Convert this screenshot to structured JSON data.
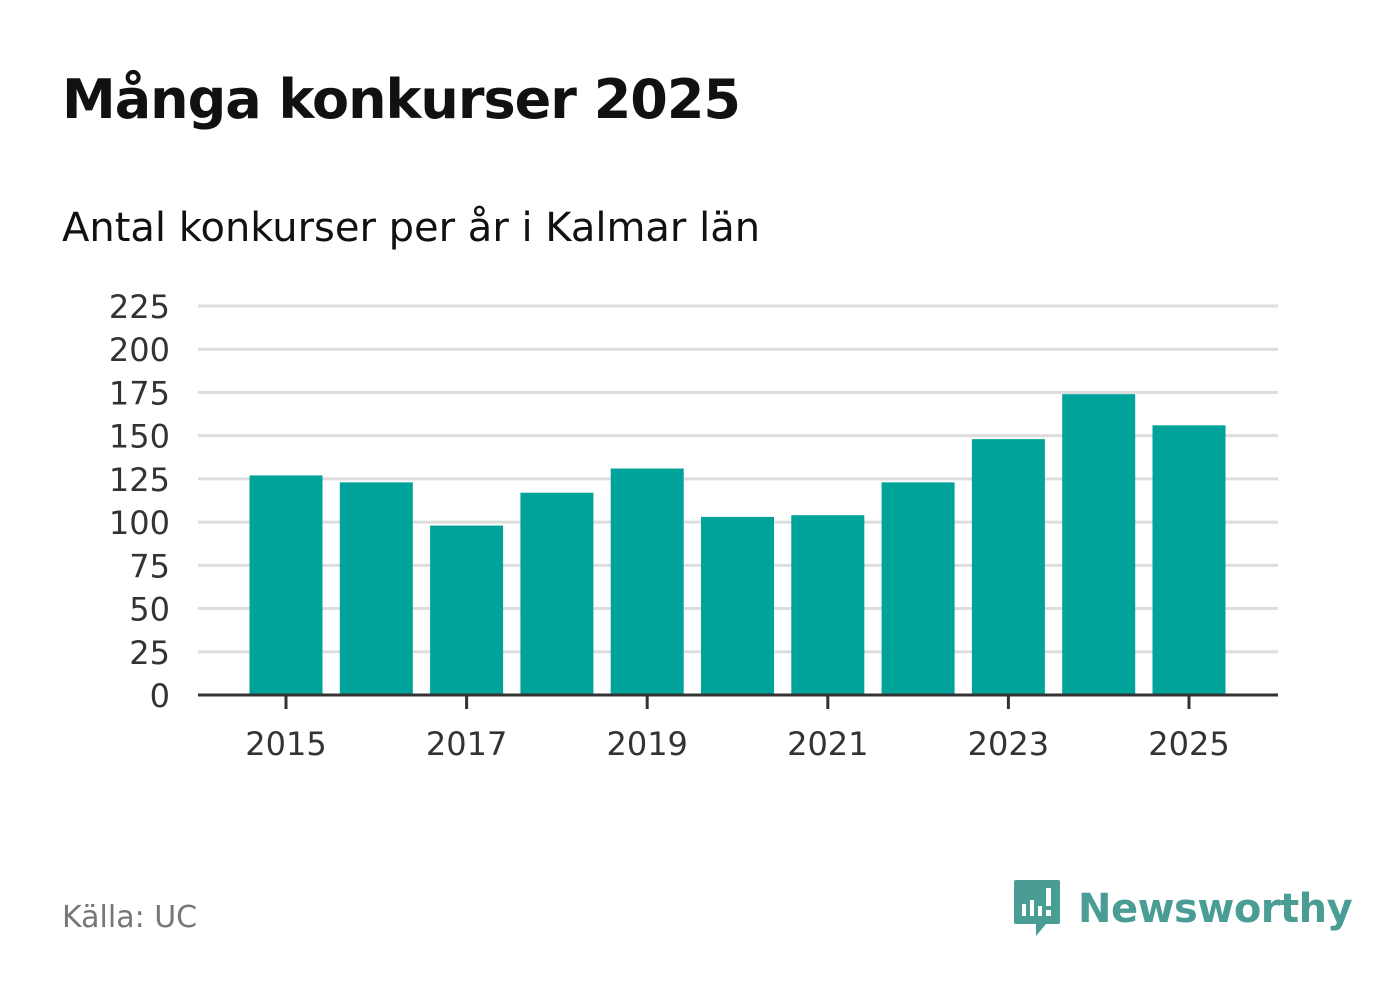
{
  "title": "Många konkurser 2025",
  "subtitle": "Antal konkurser per år i Kalmar län",
  "source": "Källa: UC",
  "brand": {
    "name": "Newsworthy",
    "icon": "newsworthy-logo-icon"
  },
  "colors": {
    "bar": "#00a39a",
    "grid": "#dddddd",
    "axis": "#333333",
    "brand": "#4a9d95"
  },
  "chart_data": {
    "type": "bar",
    "categories": [
      "2015",
      "2016",
      "2017",
      "2018",
      "2019",
      "2020",
      "2021",
      "2022",
      "2023",
      "2024",
      "2025"
    ],
    "values": [
      127,
      123,
      98,
      117,
      131,
      103,
      104,
      123,
      148,
      174,
      156
    ],
    "x_tick_labels": [
      "2015",
      "2017",
      "2019",
      "2021",
      "2023",
      "2025"
    ],
    "y_ticks": [
      0,
      25,
      50,
      75,
      100,
      125,
      150,
      175,
      200,
      225
    ],
    "ylim": [
      0,
      225
    ],
    "grid": true,
    "legend": "none"
  }
}
